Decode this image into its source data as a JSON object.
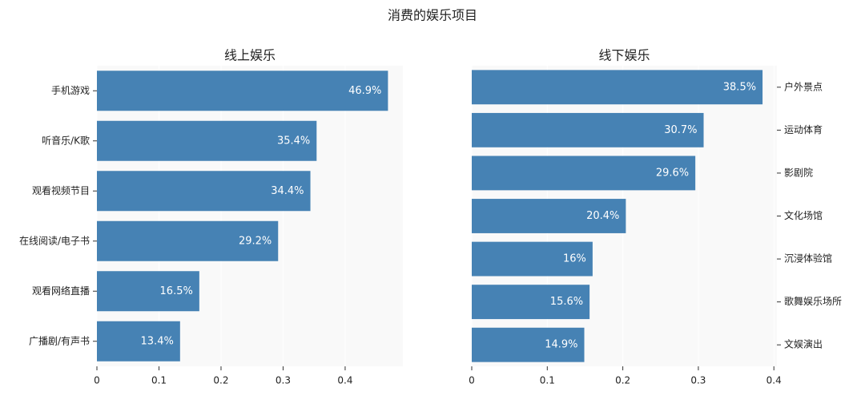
{
  "title": "消费的娱乐项目",
  "chart_data": [
    {
      "type": "bar",
      "orientation": "horizontal",
      "title": "线上娱乐",
      "categories": [
        "手机游戏",
        "听音乐/K歌",
        "观看视频节目",
        "在线阅读/电子书",
        "观看网络直播",
        "广播剧/有声书"
      ],
      "values": [
        0.469,
        0.354,
        0.344,
        0.292,
        0.165,
        0.134
      ],
      "value_labels": [
        "46.9%",
        "35.4%",
        "34.4%",
        "29.2%",
        "16.5%",
        "13.4%"
      ],
      "color": "#4682b4",
      "xlim": [
        0,
        0.493
      ],
      "xticks": [
        0,
        0.1,
        0.2,
        0.3,
        0.4
      ],
      "category_axis_side": "left",
      "grid": true
    },
    {
      "type": "bar",
      "orientation": "horizontal",
      "title": "线下娱乐",
      "categories": [
        "户外景点",
        "运动体育",
        "影剧院",
        "文化场馆",
        "沉浸体验馆",
        "歌舞娱乐场所",
        "文娱演出"
      ],
      "values": [
        0.385,
        0.307,
        0.296,
        0.204,
        0.16,
        0.156,
        0.149
      ],
      "value_labels": [
        "38.5%",
        "30.7%",
        "29.6%",
        "20.4%",
        "16%",
        "15.6%",
        "14.9%"
      ],
      "color": "#4682b4",
      "xlim": [
        0,
        0.404
      ],
      "xticks": [
        0,
        0.1,
        0.2,
        0.3,
        0.4
      ],
      "category_axis_side": "right",
      "grid": true
    }
  ]
}
